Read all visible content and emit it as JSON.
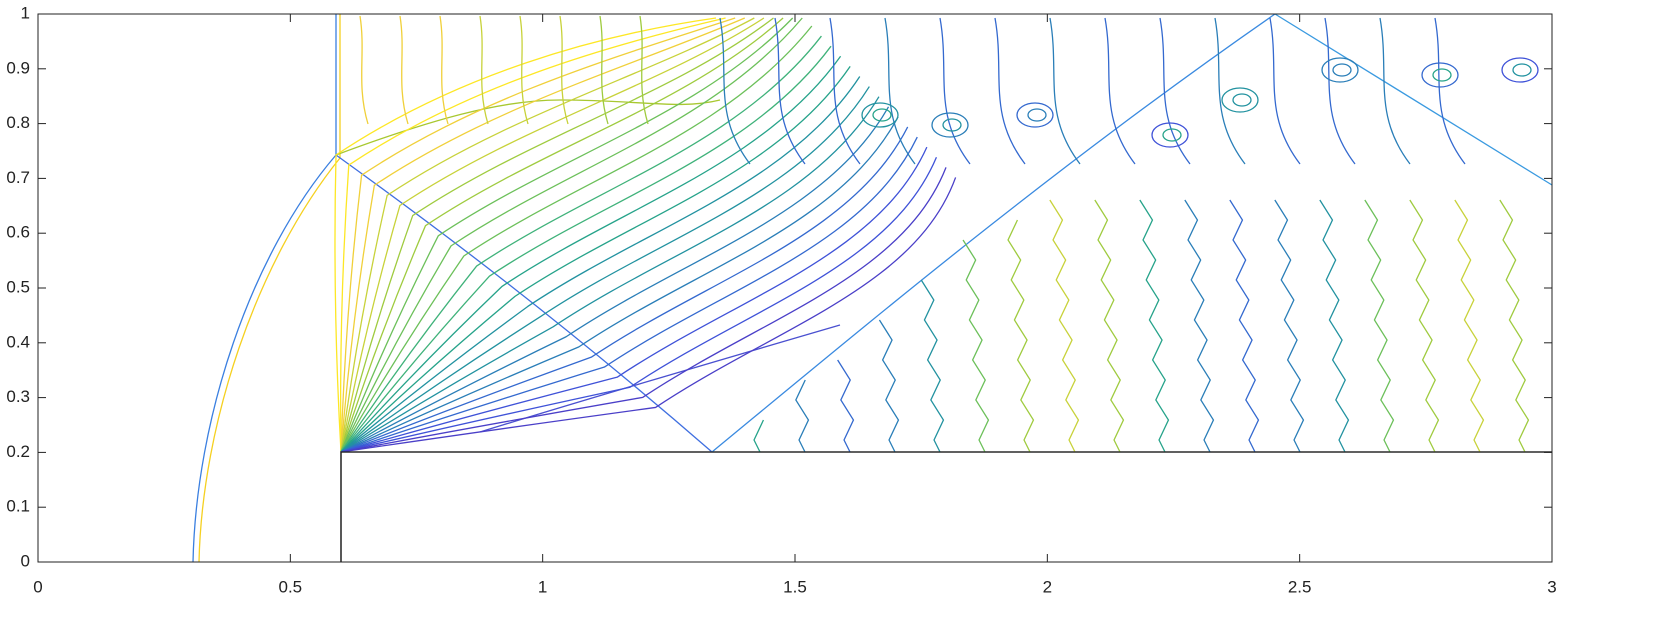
{
  "chart_data": {
    "type": "contour",
    "xlim": [
      0,
      3
    ],
    "ylim": [
      0,
      1
    ],
    "xticks": [
      0,
      0.5,
      1,
      1.5,
      2,
      2.5,
      3
    ],
    "yticks": [
      0,
      0.1,
      0.2,
      0.3,
      0.4,
      0.5,
      0.6,
      0.7,
      0.8,
      0.9,
      1
    ],
    "grid": false
  }
}
